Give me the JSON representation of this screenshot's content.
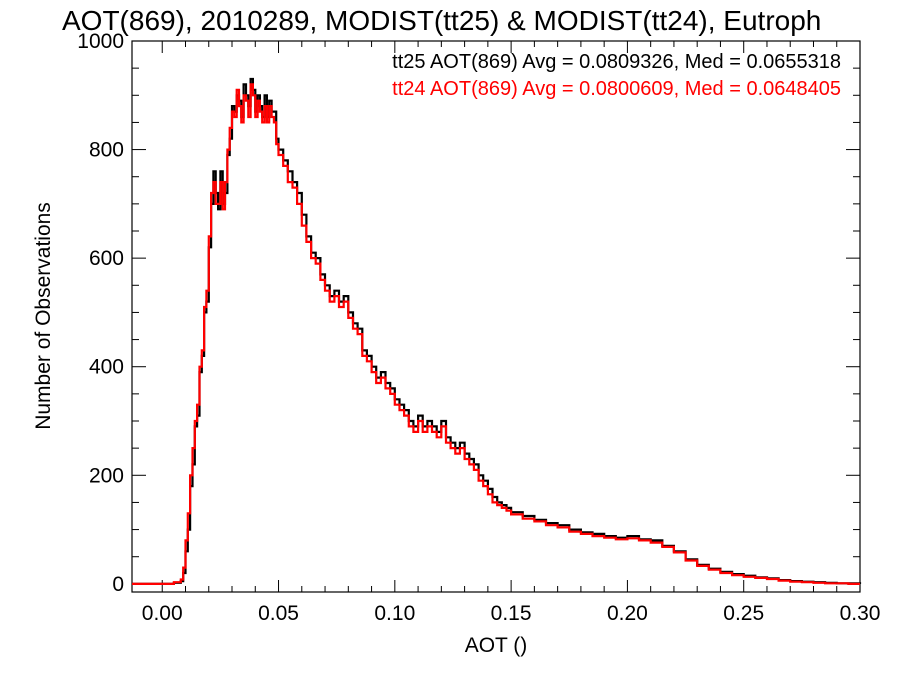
{
  "chart_data": {
    "type": "line",
    "title": "AOT(869), 2010289, MODIST(tt25) & MODIST(tt24), Eutroph",
    "xlabel": "AOT ()",
    "ylabel": "Number of Observations",
    "xlim": [
      -0.013,
      0.3
    ],
    "ylim": [
      -15,
      1000
    ],
    "xticks": [
      0.0,
      0.05,
      0.1,
      0.15,
      0.2,
      0.25,
      0.3
    ],
    "xtick_labels": [
      "0.00",
      "0.05",
      "0.10",
      "0.15",
      "0.20",
      "0.25",
      "0.30"
    ],
    "yticks": [
      0,
      200,
      400,
      600,
      800,
      1000
    ],
    "ytick_labels": [
      "0",
      "200",
      "400",
      "600",
      "800",
      "1000"
    ],
    "grid": false,
    "step": true,
    "annotations": [
      {
        "text": "tt25 AOT(869) Avg = 0.0809326, Med = 0.0655318",
        "color": "#000000"
      },
      {
        "text": "tt24 AOT(869) Avg = 0.0800609, Med = 0.0648405",
        "color": "#ff0000"
      }
    ],
    "series": [
      {
        "color": "#000000",
        "x": [
          -0.013,
          0.0,
          0.005,
          0.008,
          0.009,
          0.01,
          0.011,
          0.012,
          0.013,
          0.014,
          0.015,
          0.016,
          0.017,
          0.018,
          0.019,
          0.02,
          0.021,
          0.022,
          0.023,
          0.024,
          0.025,
          0.026,
          0.027,
          0.028,
          0.029,
          0.03,
          0.031,
          0.032,
          0.033,
          0.034,
          0.035,
          0.036,
          0.037,
          0.038,
          0.039,
          0.04,
          0.041,
          0.042,
          0.043,
          0.044,
          0.045,
          0.046,
          0.047,
          0.048,
          0.049,
          0.05,
          0.052,
          0.054,
          0.056,
          0.058,
          0.06,
          0.062,
          0.064,
          0.066,
          0.068,
          0.07,
          0.072,
          0.074,
          0.076,
          0.078,
          0.08,
          0.082,
          0.084,
          0.086,
          0.088,
          0.09,
          0.092,
          0.094,
          0.096,
          0.098,
          0.1,
          0.102,
          0.104,
          0.106,
          0.108,
          0.11,
          0.112,
          0.114,
          0.116,
          0.118,
          0.12,
          0.122,
          0.124,
          0.126,
          0.128,
          0.13,
          0.132,
          0.134,
          0.136,
          0.138,
          0.14,
          0.142,
          0.144,
          0.146,
          0.148,
          0.15,
          0.155,
          0.16,
          0.165,
          0.17,
          0.175,
          0.18,
          0.185,
          0.19,
          0.195,
          0.2,
          0.205,
          0.21,
          0.215,
          0.22,
          0.225,
          0.23,
          0.235,
          0.24,
          0.245,
          0.25,
          0.255,
          0.26,
          0.265,
          0.27,
          0.275,
          0.28,
          0.285,
          0.29,
          0.295,
          0.3
        ],
        "values": [
          0,
          0,
          2,
          5,
          20,
          60,
          100,
          180,
          220,
          290,
          310,
          390,
          420,
          500,
          520,
          620,
          700,
          760,
          720,
          690,
          760,
          700,
          720,
          790,
          820,
          880,
          870,
          900,
          890,
          860,
          920,
          900,
          880,
          930,
          910,
          870,
          900,
          880,
          860,
          900,
          860,
          890,
          870,
          870,
          820,
          800,
          780,
          760,
          740,
          720,
          680,
          640,
          610,
          600,
          570,
          550,
          530,
          540,
          520,
          530,
          500,
          480,
          470,
          430,
          420,
          400,
          380,
          390,
          370,
          360,
          340,
          330,
          320,
          300,
          290,
          310,
          290,
          300,
          290,
          280,
          300,
          270,
          260,
          250,
          260,
          240,
          230,
          220,
          200,
          190,
          175,
          160,
          150,
          145,
          140,
          132,
          125,
          118,
          112,
          108,
          100,
          95,
          92,
          88,
          85,
          88,
          82,
          80,
          70,
          60,
          45,
          35,
          28,
          22,
          18,
          15,
          12,
          10,
          7,
          5,
          4,
          3,
          2,
          1,
          1,
          0
        ]
      },
      {
        "color": "#ff0000",
        "x": [
          -0.013,
          0.0,
          0.005,
          0.008,
          0.009,
          0.01,
          0.011,
          0.012,
          0.013,
          0.014,
          0.015,
          0.016,
          0.017,
          0.018,
          0.019,
          0.02,
          0.021,
          0.022,
          0.023,
          0.024,
          0.025,
          0.026,
          0.027,
          0.028,
          0.029,
          0.03,
          0.031,
          0.032,
          0.033,
          0.034,
          0.035,
          0.036,
          0.037,
          0.038,
          0.039,
          0.04,
          0.041,
          0.042,
          0.043,
          0.044,
          0.045,
          0.046,
          0.047,
          0.048,
          0.049,
          0.05,
          0.052,
          0.054,
          0.056,
          0.058,
          0.06,
          0.062,
          0.064,
          0.066,
          0.068,
          0.07,
          0.072,
          0.074,
          0.076,
          0.078,
          0.08,
          0.082,
          0.084,
          0.086,
          0.088,
          0.09,
          0.092,
          0.094,
          0.096,
          0.098,
          0.1,
          0.102,
          0.104,
          0.106,
          0.108,
          0.11,
          0.112,
          0.114,
          0.116,
          0.118,
          0.12,
          0.122,
          0.124,
          0.126,
          0.128,
          0.13,
          0.132,
          0.134,
          0.136,
          0.138,
          0.14,
          0.142,
          0.144,
          0.146,
          0.148,
          0.15,
          0.155,
          0.16,
          0.165,
          0.17,
          0.175,
          0.18,
          0.185,
          0.19,
          0.195,
          0.2,
          0.205,
          0.21,
          0.215,
          0.22,
          0.225,
          0.23,
          0.235,
          0.24,
          0.245,
          0.25,
          0.255,
          0.26,
          0.265,
          0.27,
          0.275,
          0.28,
          0.285,
          0.29,
          0.295,
          0.3
        ],
        "values": [
          0,
          0,
          3,
          8,
          30,
          80,
          130,
          200,
          250,
          300,
          330,
          400,
          430,
          510,
          540,
          640,
          720,
          740,
          700,
          700,
          740,
          690,
          740,
          800,
          840,
          870,
          860,
          910,
          880,
          850,
          900,
          890,
          860,
          920,
          900,
          860,
          890,
          870,
          850,
          880,
          850,
          880,
          860,
          850,
          810,
          790,
          770,
          740,
          730,
          700,
          660,
          630,
          600,
          590,
          560,
          540,
          520,
          530,
          510,
          520,
          490,
          470,
          460,
          420,
          410,
          390,
          370,
          380,
          360,
          350,
          330,
          320,
          310,
          290,
          280,
          300,
          280,
          290,
          280,
          270,
          290,
          260,
          250,
          240,
          250,
          230,
          220,
          210,
          190,
          180,
          165,
          150,
          145,
          140,
          135,
          128,
          120,
          115,
          108,
          104,
          96,
          92,
          88,
          85,
          82,
          84,
          80,
          76,
          68,
          58,
          43,
          33,
          26,
          20,
          16,
          13,
          11,
          9,
          6,
          4,
          3,
          2,
          1,
          1,
          0,
          0
        ]
      }
    ]
  }
}
